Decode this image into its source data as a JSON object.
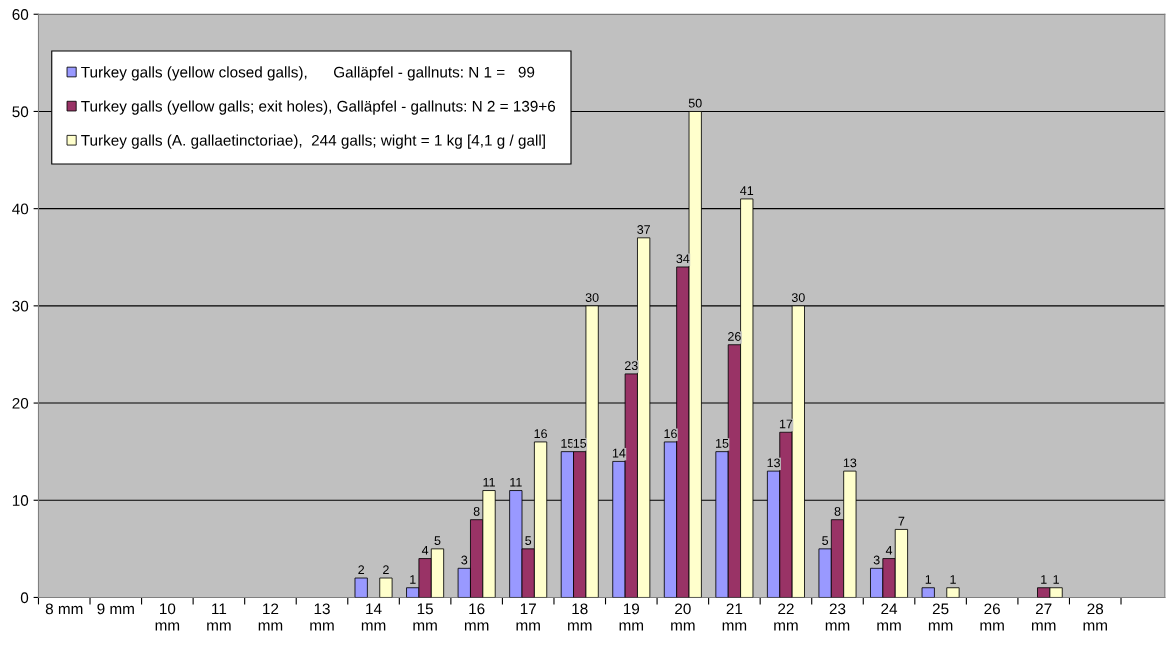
{
  "chart_data": {
    "type": "bar",
    "categories": [
      "8 mm",
      "9 mm",
      "10 mm",
      "11 mm",
      "12 mm",
      "13 mm",
      "14 mm",
      "15 mm",
      "16 mm",
      "17 mm",
      "18 mm",
      "19 mm",
      "20 mm",
      "21 mm",
      "22 mm",
      "23 mm",
      "24 mm",
      "25 mm",
      "26 mm",
      "27 mm",
      "28 mm"
    ],
    "series": [
      {
        "name": "Turkey galls (yellow closed galls),      Galläpfel - gallnuts: N 1 =   99",
        "color": "#9999ff",
        "values": [
          0,
          0,
          0,
          0,
          0,
          0,
          2,
          1,
          3,
          11,
          15,
          14,
          16,
          15,
          13,
          5,
          3,
          1,
          0,
          0,
          0
        ],
        "value_labels": [
          null,
          null,
          null,
          null,
          null,
          null,
          "2",
          "1",
          "3",
          "11",
          "15",
          "14",
          "16",
          "15",
          "13",
          "5",
          "3",
          "1",
          null,
          null,
          null
        ]
      },
      {
        "name": "Turkey galls (yellow galls; exit holes), Galläpfel - gallnuts: N 2 = 139+6",
        "color": "#993366",
        "values": [
          0,
          0,
          0,
          0,
          0,
          0,
          0,
          4,
          8,
          5,
          15,
          23,
          34,
          26,
          17,
          8,
          4,
          0,
          0,
          1,
          0
        ],
        "value_labels": [
          null,
          null,
          null,
          null,
          null,
          null,
          null,
          "4",
          "8",
          "5",
          "15",
          "23",
          "34",
          "26",
          "17",
          "8",
          "4",
          null,
          null,
          "1",
          null
        ]
      },
      {
        "name": "Turkey galls (A. gallaetinctoriae),  244 galls; wight = 1 kg [4,1 g / gall]",
        "color": "#ffffcc",
        "values": [
          0,
          0,
          0,
          0,
          0,
          0,
          2,
          5,
          11,
          16,
          30,
          37,
          50,
          41,
          30,
          13,
          7,
          1,
          0,
          1,
          0
        ],
        "value_labels": [
          null,
          null,
          null,
          null,
          null,
          null,
          "2",
          "5",
          "11",
          "16",
          "30",
          "37",
          "50",
          "41",
          "30",
          "13",
          "7",
          "1",
          null,
          "1",
          null
        ]
      }
    ],
    "ylim": [
      0,
      60
    ],
    "yticks": [
      0,
      10,
      20,
      30,
      40,
      50,
      60
    ],
    "grid": "y",
    "legend": "top left"
  }
}
